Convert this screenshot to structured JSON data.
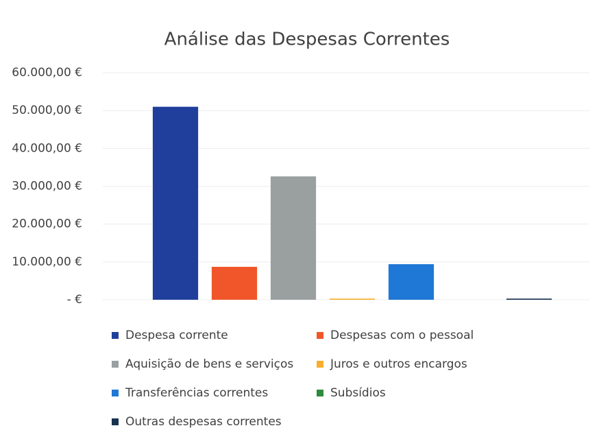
{
  "chart_data": {
    "type": "bar",
    "title": "Análise das Despesas Correntes",
    "categories": [
      null
    ],
    "series": [
      {
        "name": "Despesa corrente",
        "color": "#203f9c",
        "values": [
          51000
        ]
      },
      {
        "name": "Despesas com o pessoal",
        "color": "#f0562a",
        "values": [
          8700
        ]
      },
      {
        "name": "Aquisição de bens e serviços",
        "color": "#9a9fa0",
        "values": [
          32600
        ]
      },
      {
        "name": "Juros e outros encargos",
        "color": "#f8ae2c",
        "values": [
          300
        ]
      },
      {
        "name": "Transferências correntes",
        "color": "#1f77d6",
        "values": [
          9400
        ]
      },
      {
        "name": "Subsídios",
        "color": "#2f8a3c",
        "values": [
          0
        ]
      },
      {
        "name": "Outras despesas correntes",
        "color": "#17324f",
        "values": [
          300
        ]
      }
    ],
    "ylim": [
      0,
      60000
    ],
    "yticks": [
      {
        "value": 0,
        "label": "-   €"
      },
      {
        "value": 10000,
        "label": "10.000,00 €"
      },
      {
        "value": 20000,
        "label": "20.000,00 €"
      },
      {
        "value": 30000,
        "label": "30.000,00 €"
      },
      {
        "value": 40000,
        "label": "40.000,00 €"
      },
      {
        "value": 50000,
        "label": "50.000,00 €"
      },
      {
        "value": 60000,
        "label": "60.000,00 €"
      }
    ],
    "grid": true
  }
}
